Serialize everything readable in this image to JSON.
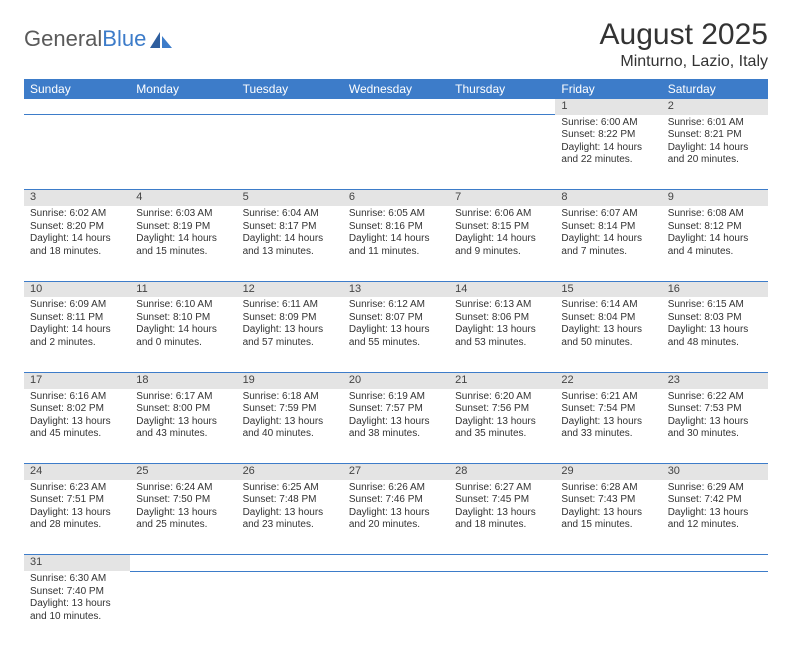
{
  "brand": {
    "name1": "General",
    "name2": "Blue"
  },
  "title": "August 2025",
  "location": "Minturno, Lazio, Italy",
  "colors": {
    "header_bg": "#3d7cc9",
    "daynum_bg": "#e4e4e4",
    "text": "#333333",
    "page_bg": "#ffffff"
  },
  "weekdays": [
    "Sunday",
    "Monday",
    "Tuesday",
    "Wednesday",
    "Thursday",
    "Friday",
    "Saturday"
  ],
  "weeks": [
    {
      "days": [
        null,
        null,
        null,
        null,
        null,
        {
          "n": "1",
          "sr": "Sunrise: 6:00 AM",
          "ss": "Sunset: 8:22 PM",
          "dl": "Daylight: 14 hours and 22 minutes."
        },
        {
          "n": "2",
          "sr": "Sunrise: 6:01 AM",
          "ss": "Sunset: 8:21 PM",
          "dl": "Daylight: 14 hours and 20 minutes."
        }
      ]
    },
    {
      "days": [
        {
          "n": "3",
          "sr": "Sunrise: 6:02 AM",
          "ss": "Sunset: 8:20 PM",
          "dl": "Daylight: 14 hours and 18 minutes."
        },
        {
          "n": "4",
          "sr": "Sunrise: 6:03 AM",
          "ss": "Sunset: 8:19 PM",
          "dl": "Daylight: 14 hours and 15 minutes."
        },
        {
          "n": "5",
          "sr": "Sunrise: 6:04 AM",
          "ss": "Sunset: 8:17 PM",
          "dl": "Daylight: 14 hours and 13 minutes."
        },
        {
          "n": "6",
          "sr": "Sunrise: 6:05 AM",
          "ss": "Sunset: 8:16 PM",
          "dl": "Daylight: 14 hours and 11 minutes."
        },
        {
          "n": "7",
          "sr": "Sunrise: 6:06 AM",
          "ss": "Sunset: 8:15 PM",
          "dl": "Daylight: 14 hours and 9 minutes."
        },
        {
          "n": "8",
          "sr": "Sunrise: 6:07 AM",
          "ss": "Sunset: 8:14 PM",
          "dl": "Daylight: 14 hours and 7 minutes."
        },
        {
          "n": "9",
          "sr": "Sunrise: 6:08 AM",
          "ss": "Sunset: 8:12 PM",
          "dl": "Daylight: 14 hours and 4 minutes."
        }
      ]
    },
    {
      "days": [
        {
          "n": "10",
          "sr": "Sunrise: 6:09 AM",
          "ss": "Sunset: 8:11 PM",
          "dl": "Daylight: 14 hours and 2 minutes."
        },
        {
          "n": "11",
          "sr": "Sunrise: 6:10 AM",
          "ss": "Sunset: 8:10 PM",
          "dl": "Daylight: 14 hours and 0 minutes."
        },
        {
          "n": "12",
          "sr": "Sunrise: 6:11 AM",
          "ss": "Sunset: 8:09 PM",
          "dl": "Daylight: 13 hours and 57 minutes."
        },
        {
          "n": "13",
          "sr": "Sunrise: 6:12 AM",
          "ss": "Sunset: 8:07 PM",
          "dl": "Daylight: 13 hours and 55 minutes."
        },
        {
          "n": "14",
          "sr": "Sunrise: 6:13 AM",
          "ss": "Sunset: 8:06 PM",
          "dl": "Daylight: 13 hours and 53 minutes."
        },
        {
          "n": "15",
          "sr": "Sunrise: 6:14 AM",
          "ss": "Sunset: 8:04 PM",
          "dl": "Daylight: 13 hours and 50 minutes."
        },
        {
          "n": "16",
          "sr": "Sunrise: 6:15 AM",
          "ss": "Sunset: 8:03 PM",
          "dl": "Daylight: 13 hours and 48 minutes."
        }
      ]
    },
    {
      "days": [
        {
          "n": "17",
          "sr": "Sunrise: 6:16 AM",
          "ss": "Sunset: 8:02 PM",
          "dl": "Daylight: 13 hours and 45 minutes."
        },
        {
          "n": "18",
          "sr": "Sunrise: 6:17 AM",
          "ss": "Sunset: 8:00 PM",
          "dl": "Daylight: 13 hours and 43 minutes."
        },
        {
          "n": "19",
          "sr": "Sunrise: 6:18 AM",
          "ss": "Sunset: 7:59 PM",
          "dl": "Daylight: 13 hours and 40 minutes."
        },
        {
          "n": "20",
          "sr": "Sunrise: 6:19 AM",
          "ss": "Sunset: 7:57 PM",
          "dl": "Daylight: 13 hours and 38 minutes."
        },
        {
          "n": "21",
          "sr": "Sunrise: 6:20 AM",
          "ss": "Sunset: 7:56 PM",
          "dl": "Daylight: 13 hours and 35 minutes."
        },
        {
          "n": "22",
          "sr": "Sunrise: 6:21 AM",
          "ss": "Sunset: 7:54 PM",
          "dl": "Daylight: 13 hours and 33 minutes."
        },
        {
          "n": "23",
          "sr": "Sunrise: 6:22 AM",
          "ss": "Sunset: 7:53 PM",
          "dl": "Daylight: 13 hours and 30 minutes."
        }
      ]
    },
    {
      "days": [
        {
          "n": "24",
          "sr": "Sunrise: 6:23 AM",
          "ss": "Sunset: 7:51 PM",
          "dl": "Daylight: 13 hours and 28 minutes."
        },
        {
          "n": "25",
          "sr": "Sunrise: 6:24 AM",
          "ss": "Sunset: 7:50 PM",
          "dl": "Daylight: 13 hours and 25 minutes."
        },
        {
          "n": "26",
          "sr": "Sunrise: 6:25 AM",
          "ss": "Sunset: 7:48 PM",
          "dl": "Daylight: 13 hours and 23 minutes."
        },
        {
          "n": "27",
          "sr": "Sunrise: 6:26 AM",
          "ss": "Sunset: 7:46 PM",
          "dl": "Daylight: 13 hours and 20 minutes."
        },
        {
          "n": "28",
          "sr": "Sunrise: 6:27 AM",
          "ss": "Sunset: 7:45 PM",
          "dl": "Daylight: 13 hours and 18 minutes."
        },
        {
          "n": "29",
          "sr": "Sunrise: 6:28 AM",
          "ss": "Sunset: 7:43 PM",
          "dl": "Daylight: 13 hours and 15 minutes."
        },
        {
          "n": "30",
          "sr": "Sunrise: 6:29 AM",
          "ss": "Sunset: 7:42 PM",
          "dl": "Daylight: 13 hours and 12 minutes."
        }
      ]
    },
    {
      "days": [
        {
          "n": "31",
          "sr": "Sunrise: 6:30 AM",
          "ss": "Sunset: 7:40 PM",
          "dl": "Daylight: 13 hours and 10 minutes."
        },
        null,
        null,
        null,
        null,
        null,
        null
      ]
    }
  ]
}
